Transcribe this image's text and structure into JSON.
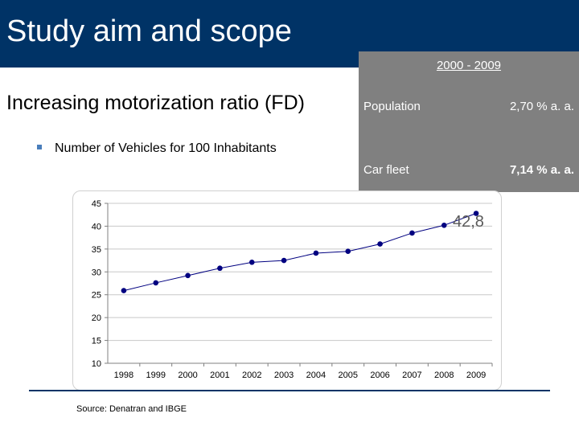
{
  "header": {
    "title": "Study aim and scope"
  },
  "stats_box": {
    "period": "2000 - 2009",
    "rows": [
      {
        "label": "Population",
        "value": "2,70 % a. a."
      },
      {
        "label": "Car fleet",
        "value": "7,14 % a. a."
      }
    ]
  },
  "subtitle": "Increasing motorization ratio (FD)",
  "bullet": "Number of Vehicles for 100 Inhabitants",
  "callout": "42,8",
  "source": "Source: Denatran and IBGE",
  "colors": {
    "header_bg": "#003366",
    "stats_bg": "#808080",
    "series": "#000080",
    "bullet": "#4a7ebb"
  },
  "chart_data": {
    "type": "line",
    "title": "",
    "xlabel": "",
    "ylabel": "",
    "categories": [
      "1998",
      "1999",
      "2000",
      "2001",
      "2002",
      "2003",
      "2004",
      "2005",
      "2006",
      "2007",
      "2008",
      "2009"
    ],
    "series": [
      {
        "values": [
          25.9,
          27.6,
          29.2,
          30.8,
          32.1,
          32.5,
          34.1,
          34.5,
          36.1,
          38.5,
          40.2,
          42.8
        ]
      }
    ],
    "ylim": [
      10,
      45
    ],
    "yticks": [
      "10",
      "15",
      "20",
      "25",
      "30",
      "35",
      "40",
      "45"
    ],
    "grid": true,
    "legend": "none"
  }
}
